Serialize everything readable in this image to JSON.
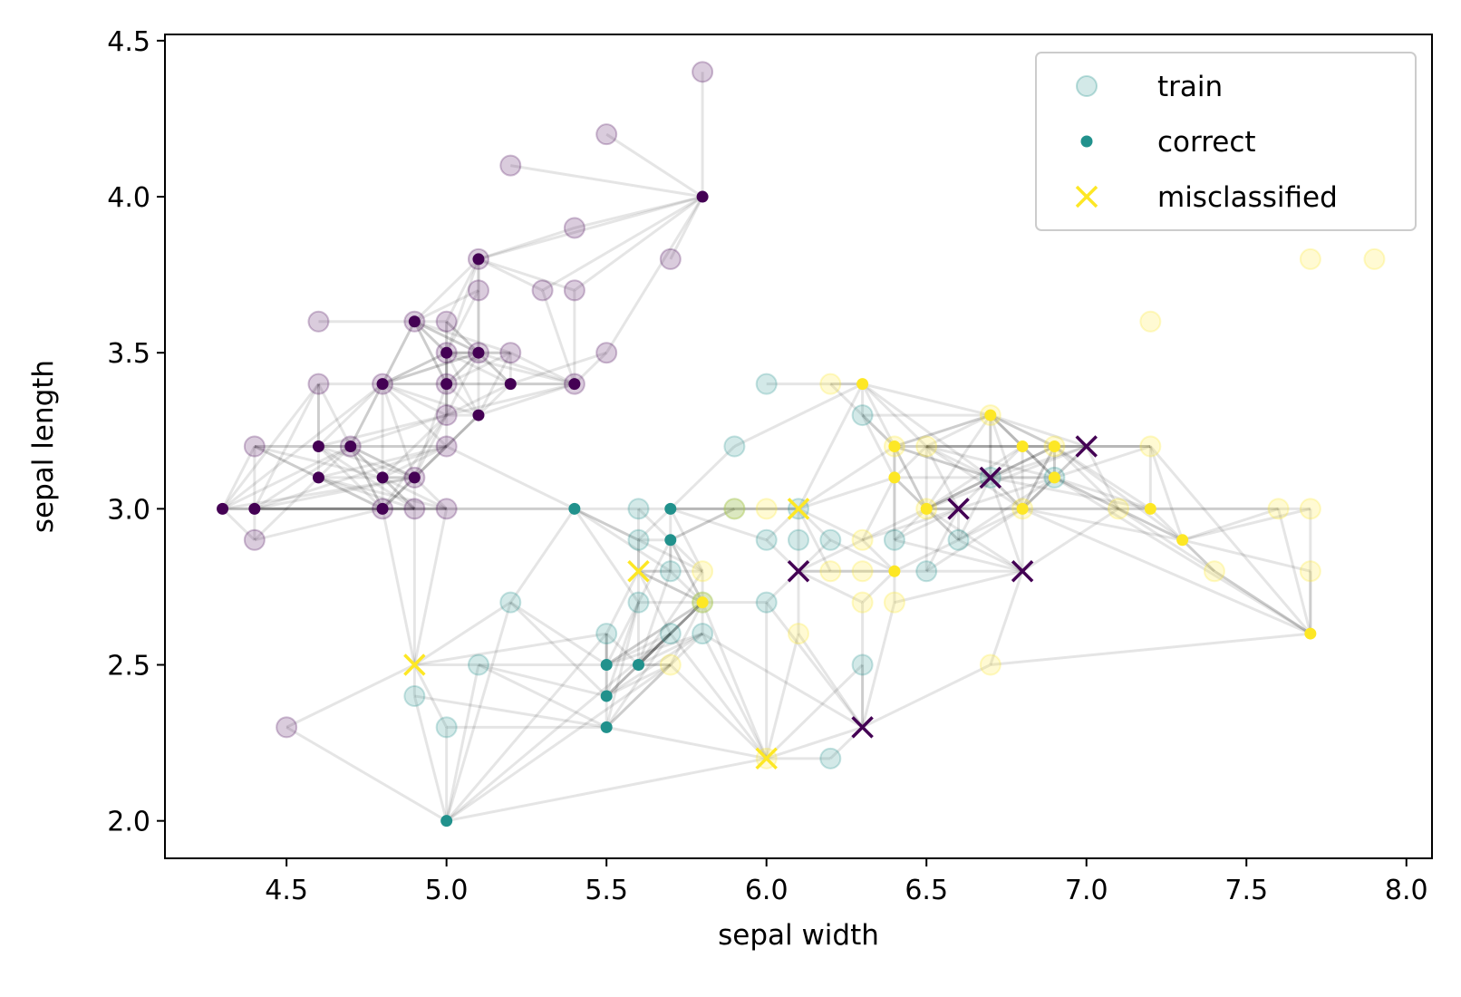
{
  "chart_data": {
    "type": "scatter",
    "title": "",
    "xlabel": "sepal width",
    "ylabel": "sepal length",
    "xlim": [
      4.12,
      8.08
    ],
    "ylim": [
      1.88,
      4.52
    ],
    "x_ticks": [
      "4.5",
      "5.0",
      "5.5",
      "6.0",
      "6.5",
      "7.0",
      "7.5",
      "8.0"
    ],
    "y_ticks": [
      "2.0",
      "2.5",
      "3.0",
      "3.5",
      "4.0",
      "4.5"
    ],
    "grid": false,
    "legend_position": "top-right",
    "colors": {
      "setosa": "#440154",
      "versicolor": "#21918c",
      "virginica": "#fde725",
      "edge": "#000000"
    },
    "legend": [
      {
        "label": "train",
        "marker": "faded-circle"
      },
      {
        "label": "correct",
        "marker": "dot"
      },
      {
        "label": "misclassified",
        "marker": "x"
      }
    ],
    "series": [
      {
        "name": "train",
        "points": [
          [
            5.8,
            4.4,
            0
          ],
          [
            5.5,
            4.2,
            0
          ],
          [
            5.2,
            4.1,
            0
          ],
          [
            5.4,
            3.9,
            0
          ],
          [
            5.1,
            3.8,
            0
          ],
          [
            5.7,
            3.8,
            0
          ],
          [
            5.1,
            3.7,
            0
          ],
          [
            5.3,
            3.7,
            0
          ],
          [
            5.4,
            3.7,
            0
          ],
          [
            4.6,
            3.6,
            0
          ],
          [
            5.0,
            3.6,
            0
          ],
          [
            4.9,
            3.6,
            0
          ],
          [
            5.0,
            3.5,
            0
          ],
          [
            5.1,
            3.5,
            0
          ],
          [
            5.2,
            3.5,
            0
          ],
          [
            5.5,
            3.5,
            0
          ],
          [
            4.6,
            3.4,
            0
          ],
          [
            4.8,
            3.4,
            0
          ],
          [
            5.0,
            3.4,
            0
          ],
          [
            5.4,
            3.4,
            0
          ],
          [
            5.0,
            3.3,
            0
          ],
          [
            4.4,
            3.2,
            0
          ],
          [
            4.7,
            3.2,
            0
          ],
          [
            5.0,
            3.2,
            0
          ],
          [
            4.9,
            3.1,
            0
          ],
          [
            4.8,
            3.0,
            0
          ],
          [
            4.9,
            3.0,
            0
          ],
          [
            5.0,
            3.0,
            0
          ],
          [
            4.4,
            2.9,
            0
          ],
          [
            4.5,
            2.3,
            0
          ],
          [
            6.0,
            3.4,
            1
          ],
          [
            5.9,
            3.2,
            1
          ],
          [
            6.3,
            3.3,
            1
          ],
          [
            5.6,
            3.0,
            1
          ],
          [
            5.9,
            3.0,
            1
          ],
          [
            6.1,
            3.0,
            1
          ],
          [
            5.6,
            2.9,
            1
          ],
          [
            6.0,
            2.9,
            1
          ],
          [
            6.1,
            2.9,
            1
          ],
          [
            6.2,
            2.9,
            1
          ],
          [
            6.6,
            2.9,
            1
          ],
          [
            6.4,
            2.9,
            1
          ],
          [
            5.7,
            2.8,
            1
          ],
          [
            6.5,
            2.8,
            1
          ],
          [
            5.2,
            2.7,
            1
          ],
          [
            5.6,
            2.7,
            1
          ],
          [
            5.8,
            2.7,
            1
          ],
          [
            6.0,
            2.7,
            1
          ],
          [
            5.5,
            2.6,
            1
          ],
          [
            5.7,
            2.6,
            1
          ],
          [
            5.8,
            2.6,
            1
          ],
          [
            5.1,
            2.5,
            1
          ],
          [
            6.3,
            2.5,
            1
          ],
          [
            4.9,
            2.4,
            1
          ],
          [
            5.0,
            2.3,
            1
          ],
          [
            6.2,
            2.2,
            1
          ],
          [
            6.7,
            3.1,
            1
          ],
          [
            6.9,
            3.1,
            1
          ],
          [
            7.2,
            3.6,
            2
          ],
          [
            7.7,
            3.8,
            2
          ],
          [
            7.9,
            3.8,
            2
          ],
          [
            6.2,
            3.4,
            2
          ],
          [
            6.4,
            3.2,
            2
          ],
          [
            6.5,
            3.2,
            2
          ],
          [
            6.7,
            3.3,
            2
          ],
          [
            7.2,
            3.2,
            2
          ],
          [
            6.9,
            3.2,
            2
          ],
          [
            6.5,
            3.0,
            2
          ],
          [
            5.9,
            3.0,
            2
          ],
          [
            6.0,
            3.0,
            2
          ],
          [
            7.1,
            3.0,
            2
          ],
          [
            7.6,
            3.0,
            2
          ],
          [
            7.7,
            3.0,
            2
          ],
          [
            6.3,
            2.9,
            2
          ],
          [
            6.3,
            2.8,
            2
          ],
          [
            6.2,
            2.8,
            2
          ],
          [
            5.8,
            2.8,
            2
          ],
          [
            7.4,
            2.8,
            2
          ],
          [
            7.7,
            2.8,
            2
          ],
          [
            6.4,
            2.7,
            2
          ],
          [
            6.3,
            2.7,
            2
          ],
          [
            5.8,
            2.7,
            2
          ],
          [
            6.1,
            2.6,
            2
          ],
          [
            5.7,
            2.5,
            2
          ],
          [
            6.7,
            2.5,
            2
          ],
          [
            6.0,
            2.2,
            2
          ],
          [
            6.8,
            3.0,
            2
          ]
        ]
      },
      {
        "name": "correct",
        "points": [
          [
            5.8,
            4.0,
            0
          ],
          [
            5.1,
            3.8,
            0
          ],
          [
            4.9,
            3.6,
            0
          ],
          [
            5.0,
            3.5,
            0
          ],
          [
            5.1,
            3.5,
            0
          ],
          [
            5.0,
            3.4,
            0
          ],
          [
            5.2,
            3.4,
            0
          ],
          [
            5.4,
            3.4,
            0
          ],
          [
            4.8,
            3.4,
            0
          ],
          [
            5.1,
            3.3,
            0
          ],
          [
            4.6,
            3.2,
            0
          ],
          [
            4.7,
            3.2,
            0
          ],
          [
            4.6,
            3.1,
            0
          ],
          [
            4.8,
            3.1,
            0
          ],
          [
            4.9,
            3.1,
            0
          ],
          [
            4.3,
            3.0,
            0
          ],
          [
            4.4,
            3.0,
            0
          ],
          [
            4.8,
            3.0,
            0
          ],
          [
            5.4,
            3.0,
            1
          ],
          [
            5.7,
            3.0,
            1
          ],
          [
            5.7,
            2.9,
            1
          ],
          [
            5.5,
            2.5,
            1
          ],
          [
            5.6,
            2.5,
            1
          ],
          [
            5.5,
            2.4,
            1
          ],
          [
            5.5,
            2.3,
            1
          ],
          [
            5.0,
            2.0,
            1
          ],
          [
            6.3,
            3.4,
            2
          ],
          [
            6.4,
            3.2,
            2
          ],
          [
            6.4,
            3.1,
            2
          ],
          [
            6.7,
            3.3,
            2
          ],
          [
            6.8,
            3.2,
            2
          ],
          [
            6.9,
            3.2,
            2
          ],
          [
            6.9,
            3.1,
            2
          ],
          [
            6.5,
            3.0,
            2
          ],
          [
            6.8,
            3.0,
            2
          ],
          [
            7.2,
            3.0,
            2
          ],
          [
            7.3,
            2.9,
            2
          ],
          [
            6.4,
            2.8,
            2
          ],
          [
            7.7,
            2.6,
            2
          ],
          [
            5.8,
            2.7,
            2
          ]
        ]
      },
      {
        "name": "misclassified",
        "points": [
          [
            7.0,
            3.2,
            0
          ],
          [
            6.7,
            3.1,
            0
          ],
          [
            6.6,
            3.0,
            0
          ],
          [
            6.1,
            2.8,
            0
          ],
          [
            6.8,
            2.8,
            0
          ],
          [
            6.3,
            2.3,
            0
          ],
          [
            6.1,
            3.0,
            2
          ],
          [
            5.6,
            2.8,
            2
          ],
          [
            4.9,
            2.5,
            2
          ],
          [
            6.0,
            2.2,
            2
          ]
        ]
      }
    ]
  }
}
